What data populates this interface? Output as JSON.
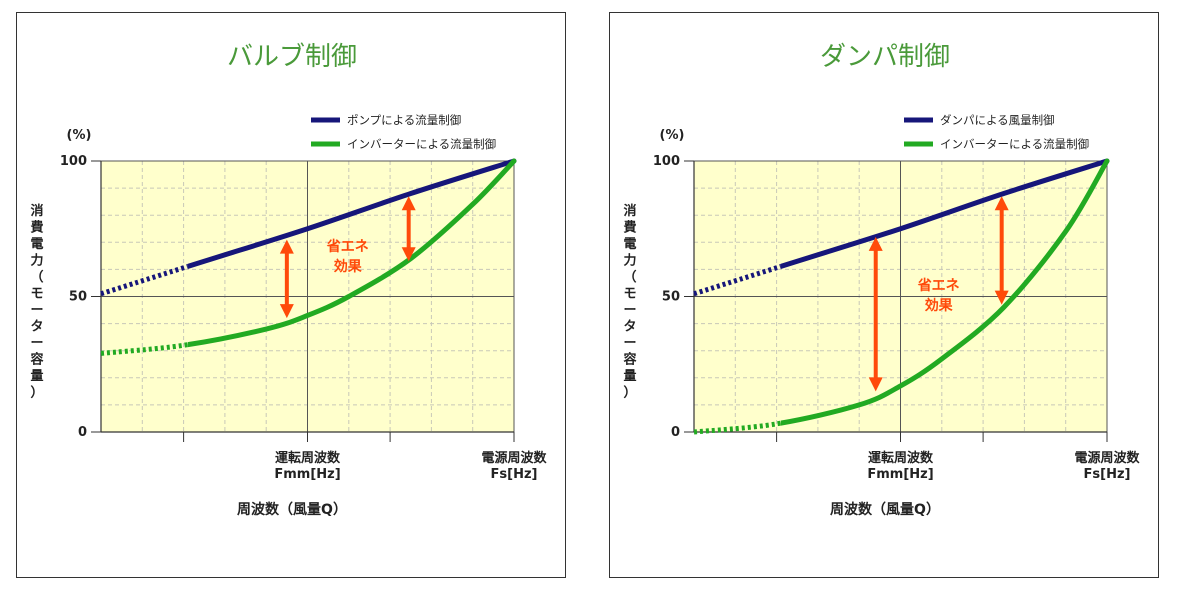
{
  "chart_data": [
    {
      "type": "line",
      "title": "バルブ制御",
      "y_unit": "(%)",
      "ylabel_chars": [
        "消",
        "費",
        "電",
        "力",
        "（",
        "モ",
        "ー",
        "タ",
        "ー",
        "容",
        "量",
        "）"
      ],
      "xlabel": "周波数（風量Q）",
      "ylim": [
        0,
        100
      ],
      "yticks": [
        "0",
        "50",
        "100"
      ],
      "x_annotations": [
        {
          "x": 0.5,
          "lines": [
            "運転周波数",
            "Fmm[Hz]"
          ]
        },
        {
          "x": 1.0,
          "lines": [
            "電源周波数",
            "Fs[Hz]"
          ]
        }
      ],
      "series": [
        {
          "name": "ポンプによる流量制御",
          "color": "#16167a",
          "x": [
            0,
            0.25,
            0.5,
            0.75,
            1.0
          ],
          "y": [
            51,
            63,
            75,
            88,
            100
          ]
        },
        {
          "name": "インバーターによる流量制御",
          "color": "#22aa22",
          "x": [
            0,
            0.2,
            0.4,
            0.5,
            0.6,
            0.75,
            0.9,
            1.0
          ],
          "y": [
            29,
            32,
            38,
            43,
            50,
            64,
            84,
            100
          ]
        }
      ],
      "annotation": {
        "lines": [
          "省エネ",
          "効果"
        ],
        "color": "#ff4a0a"
      },
      "arrows": [
        {
          "x": 0.45,
          "y_top": 71,
          "y_bottom": 42
        },
        {
          "x": 0.745,
          "y_top": 87,
          "y_bottom": 63
        }
      ]
    },
    {
      "type": "line",
      "title": "ダンパ制御",
      "y_unit": "(%)",
      "ylabel_chars": [
        "消",
        "費",
        "電",
        "力",
        "（",
        "モ",
        "ー",
        "タ",
        "ー",
        "容",
        "量",
        "）"
      ],
      "xlabel": "周波数（風量Q）",
      "ylim": [
        0,
        100
      ],
      "yticks": [
        "0",
        "50",
        "100"
      ],
      "x_annotations": [
        {
          "x": 0.5,
          "lines": [
            "運転周波数",
            "Fmm[Hz]"
          ]
        },
        {
          "x": 1.0,
          "lines": [
            "電源周波数",
            "Fs[Hz]"
          ]
        }
      ],
      "series": [
        {
          "name": "ダンパによる風量制御",
          "color": "#16167a",
          "x": [
            0,
            0.25,
            0.5,
            0.75,
            1.0
          ],
          "y": [
            51,
            63,
            75,
            88,
            100
          ]
        },
        {
          "name": "インバーターによる流量制御",
          "color": "#22aa22",
          "x": [
            0,
            0.2,
            0.4,
            0.5,
            0.6,
            0.75,
            0.9,
            1.0
          ],
          "y": [
            0,
            3,
            10,
            17,
            27,
            46,
            74,
            100
          ]
        }
      ],
      "annotation": {
        "lines": [
          "省エネ",
          "効果"
        ],
        "color": "#ff4a0a"
      },
      "arrows": [
        {
          "x": 0.44,
          "y_top": 72,
          "y_bottom": 15
        },
        {
          "x": 0.745,
          "y_top": 87,
          "y_bottom": 47
        }
      ]
    }
  ]
}
